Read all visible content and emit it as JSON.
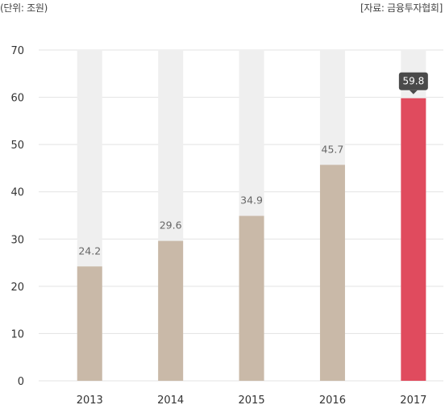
{
  "unit_text": "(단위: 조원)",
  "source_text": "[자료: 금융투자협회]",
  "colors": {
    "bar": "#c9b9a8",
    "bar_highlight": "#e04b5e",
    "track": "#efefef",
    "grid": "#e3e3e3",
    "tooltip_bg": "#4a4a4a"
  },
  "chart_data": {
    "type": "bar",
    "title": "",
    "xlabel": "",
    "ylabel": "",
    "categories": [
      "2013",
      "2014",
      "2015",
      "2016",
      "2017"
    ],
    "values": [
      24.2,
      29.6,
      34.9,
      45.7,
      59.8
    ],
    "value_labels": [
      "24.2",
      "29.6",
      "34.9",
      "45.7",
      "59.8"
    ],
    "highlight_index": 4,
    "ylim": [
      0,
      70
    ],
    "yticks": [
      0,
      10,
      20,
      30,
      40,
      50,
      60,
      70
    ],
    "grid": true,
    "legend": "none"
  }
}
